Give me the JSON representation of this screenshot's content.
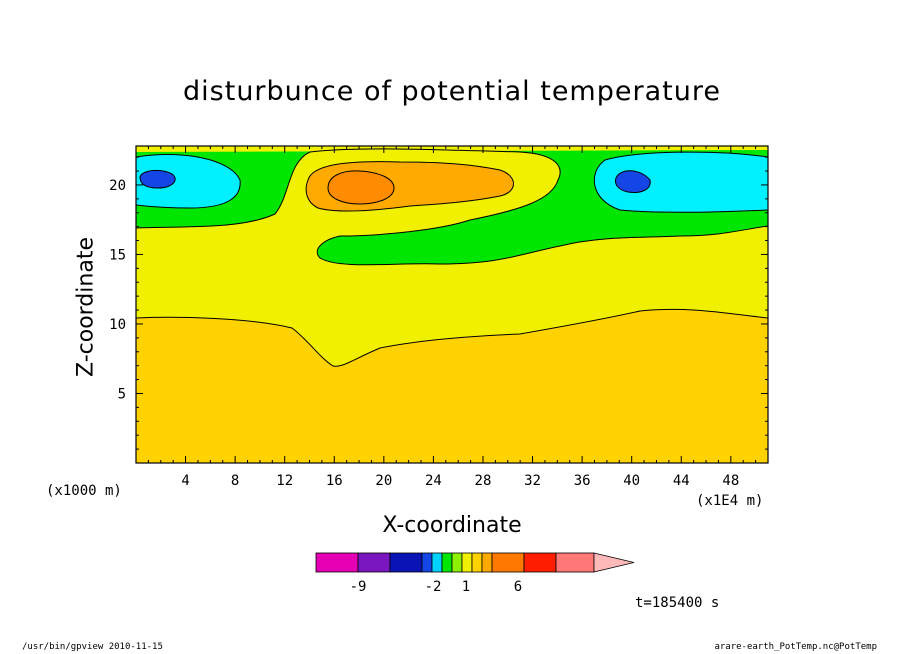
{
  "chart_data": {
    "type": "contour",
    "title": "disturbunce of potential temperature",
    "xlabel": "X-coordinate",
    "ylabel": "Z-coordinate",
    "x_unit_left": "(x1000 m)",
    "x_unit_right": "(x1E4 m)",
    "xlim": [
      0,
      51
    ],
    "ylim": [
      0,
      22.8
    ],
    "x_ticks": [
      4,
      8,
      12,
      16,
      20,
      24,
      28,
      32,
      36,
      40,
      44,
      48
    ],
    "y_ticks": [
      5,
      10,
      15,
      20
    ],
    "colorbar": {
      "levels": [
        "-9",
        "-2",
        "1",
        "6"
      ],
      "colors": [
        "#e600b3",
        "#7a16c0",
        "#0a14b4",
        "#1446e6",
        "#00d2ff",
        "#00e600",
        "#8cf000",
        "#f0f000",
        "#ffd200",
        "#ffaa00",
        "#ff7800",
        "#ff1e00",
        "#ff7878",
        "#ffb9b9"
      ]
    },
    "fill_colors": {
      "background": "#ffd200",
      "band_yellow": "#f0f000",
      "band_green": "#00e600",
      "cold_cyan": "#00f0ff",
      "cold_core": "#1446e6",
      "warm_orange": "#ffaa00",
      "warm_core": "#ff8c00"
    },
    "time_label": "t=185400 s"
  },
  "footer": {
    "left": "/usr/bin/gpview   2010-11-15",
    "right": "arare-earth_PotTemp.nc@PotTemp"
  }
}
